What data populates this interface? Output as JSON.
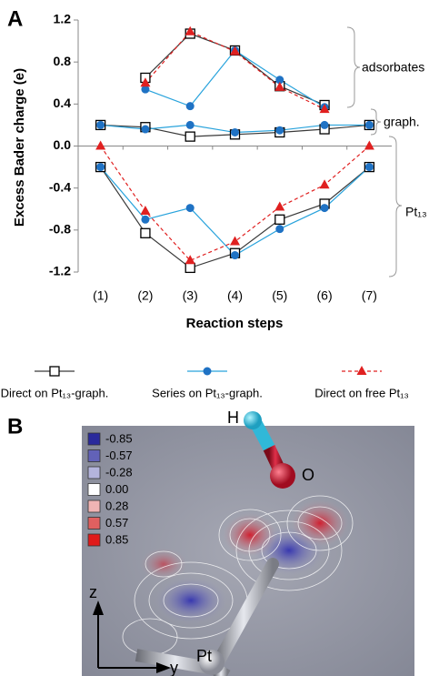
{
  "chart_data": {
    "type": "line",
    "panel_label": "A",
    "ylabel": "Excess Bader charge (e)",
    "xlabel": "Reaction steps",
    "categories": [
      "(1)",
      "(2)",
      "(3)",
      "(4)",
      "(5)",
      "(6)",
      "(7)"
    ],
    "ylim": [
      -1.2,
      1.2
    ],
    "yticks": [
      -1.2,
      -0.8,
      -0.4,
      {
        "value": 0,
        "label": "0.0"
      },
      0.4,
      0.8,
      1.2
    ],
    "groups": [
      "adsorbates",
      "graph.",
      "Pt₁₃"
    ],
    "series": [
      {
        "name": "Direct on Pt₁₃-graph.",
        "color": "#3a3a3a",
        "marker_color": "#000000",
        "marker": "square",
        "dashed": false,
        "values": [
          [
            null,
            0.65,
            1.07,
            0.91,
            0.57,
            0.39,
            null
          ],
          [
            0.2,
            0.18,
            0.09,
            0.11,
            0.13,
            0.16,
            0.2
          ],
          [
            -0.2,
            -0.83,
            -1.16,
            -1.02,
            -0.7,
            -0.55,
            -0.2
          ]
        ]
      },
      {
        "name": "Series on Pt₁₃-graph.",
        "color": "#29a3dc",
        "marker_color": "#1f72c4",
        "marker": "circle",
        "dashed": false,
        "values": [
          [
            null,
            0.54,
            0.38,
            0.91,
            0.63,
            0.37,
            null
          ],
          [
            0.2,
            0.16,
            0.2,
            0.13,
            0.15,
            0.2,
            0.2
          ],
          [
            -0.2,
            -0.7,
            -0.59,
            -1.04,
            -0.79,
            -0.59,
            -0.2
          ]
        ]
      },
      {
        "name": "Direct on free Pt₁₃",
        "color": "#e02020",
        "marker_color": "#e02020",
        "marker": "triangle",
        "dashed": true,
        "values": [
          [
            null,
            0.6,
            1.09,
            0.9,
            0.56,
            0.35,
            null
          ],
          [
            null,
            null,
            null,
            null,
            null,
            null,
            null
          ],
          [
            0,
            -0.62,
            -1.09,
            -0.91,
            -0.58,
            -0.37,
            0
          ]
        ]
      }
    ]
  },
  "panel_b": {
    "label": "B",
    "legend": [
      {
        "label": "-0.85",
        "color": "#2a2a9c"
      },
      {
        "label": "-0.57",
        "color": "#6262b8"
      },
      {
        "label": "-0.28",
        "color": "#b4b4dc"
      },
      {
        "label": "0.00",
        "color": "#ffffff"
      },
      {
        "label": "0.28",
        "color": "#f0b4b4"
      },
      {
        "label": "0.57",
        "color": "#e06060"
      },
      {
        "label": "0.85",
        "color": "#e01a1a"
      }
    ],
    "atoms": [
      "H",
      "O",
      "Pt"
    ],
    "axes": [
      "z",
      "y"
    ]
  }
}
